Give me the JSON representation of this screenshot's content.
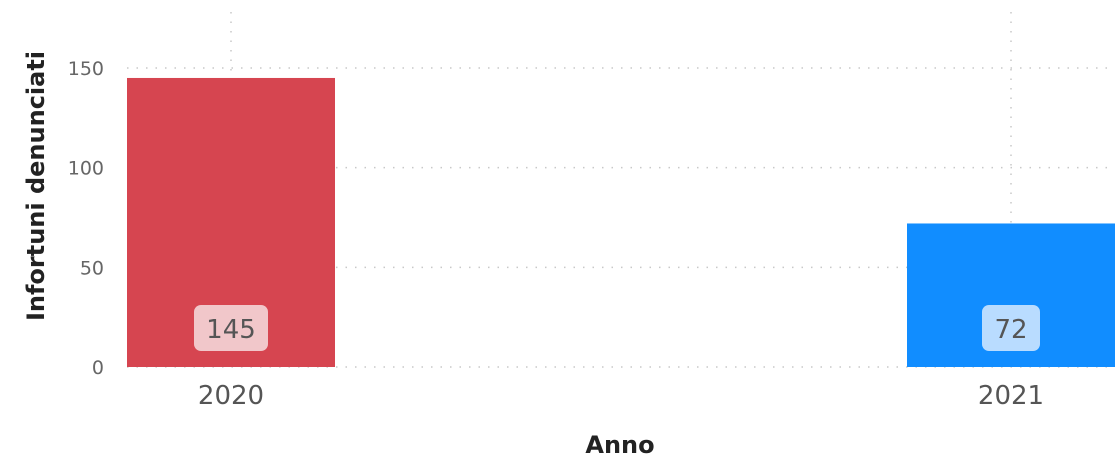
{
  "chart_data": {
    "type": "bar",
    "categories": [
      "2020",
      "2021"
    ],
    "values": [
      145,
      72
    ],
    "colors": [
      "#d64550",
      "#118dff"
    ],
    "label_bg_colors": [
      "#f1c7ca",
      "#b9dcff"
    ],
    "xlabel": "Anno",
    "ylabel": "Infortuni denunciati",
    "ylim": [
      0,
      150
    ],
    "yticks": [
      0,
      50,
      100,
      150
    ],
    "grid": true,
    "data_labels": true
  }
}
